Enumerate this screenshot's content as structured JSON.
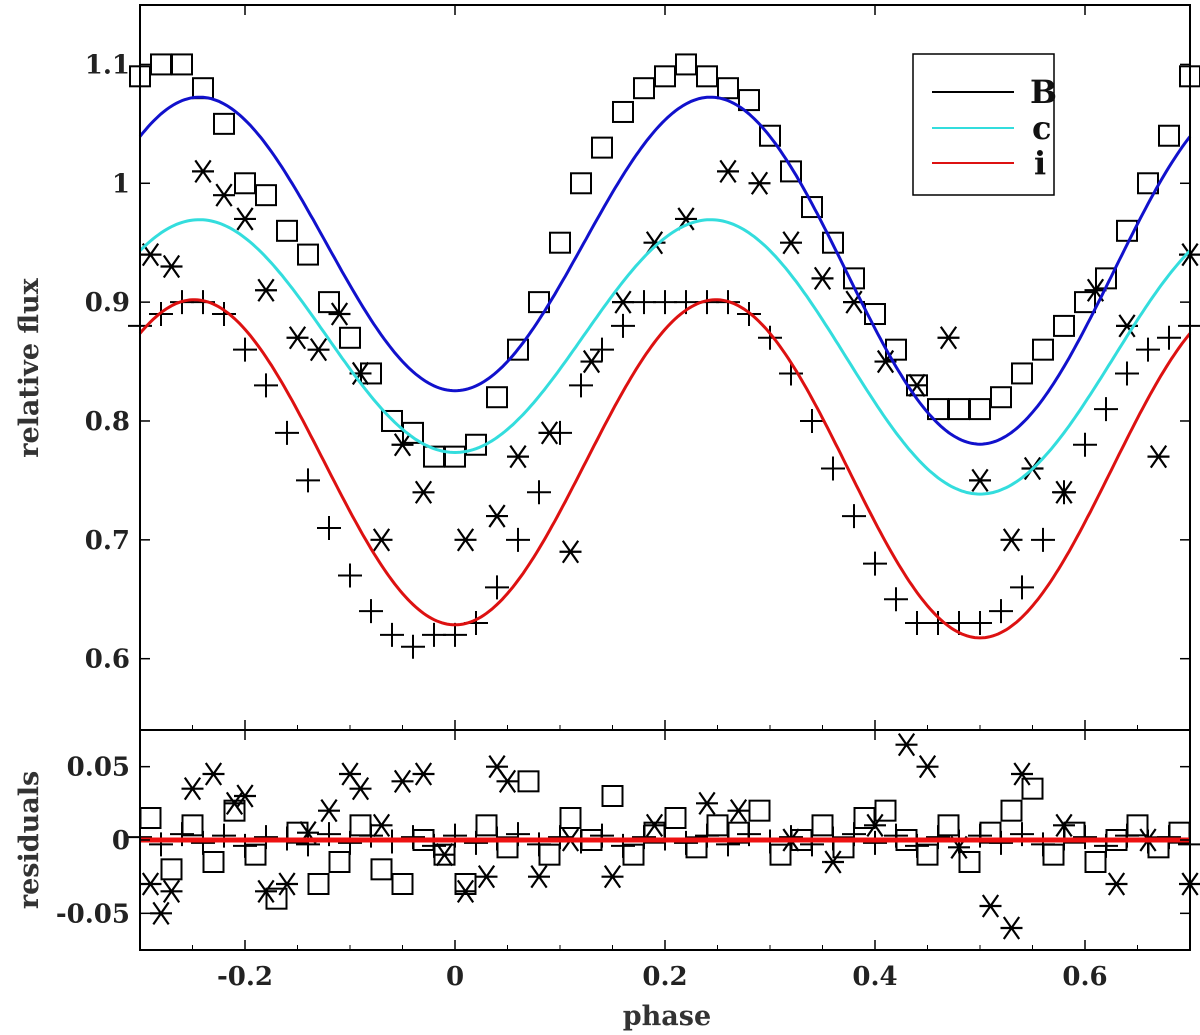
{
  "chart_data": [
    {
      "type": "scatter",
      "panel": "top",
      "title": "",
      "xlabel": "",
      "ylabel": "relative flux",
      "xlim": [
        -0.3,
        0.7
      ],
      "ylim": [
        0.54,
        1.15
      ],
      "grid": false,
      "legend_position": "top-right",
      "x_ticks": [
        -0.2,
        0,
        0.2,
        0.4,
        0.6
      ],
      "y_ticks": [
        0.6,
        0.7,
        0.8,
        0.9,
        1,
        1.1
      ],
      "y_tick_labels": [
        "0.6",
        "0.7",
        "0.8",
        "0.9",
        "1",
        "1.1"
      ],
      "legend": [
        {
          "label": "B",
          "color": "#000000"
        },
        {
          "label": "c",
          "color": "#33dddd"
        },
        {
          "label": "i",
          "color": "#dd1111"
        }
      ],
      "series": [
        {
          "name": "B",
          "marker": "square",
          "line_color": "#1111cc",
          "x": [
            -0.3,
            -0.28,
            -0.26,
            -0.24,
            -0.22,
            -0.2,
            -0.18,
            -0.16,
            -0.14,
            -0.12,
            -0.1,
            -0.08,
            -0.06,
            -0.04,
            -0.02,
            0,
            0.02,
            0.04,
            0.06,
            0.08,
            0.1,
            0.12,
            0.14,
            0.16,
            0.18,
            0.2,
            0.22,
            0.24,
            0.26,
            0.28,
            0.3,
            0.32,
            0.34,
            0.36,
            0.38,
            0.4,
            0.42,
            0.44,
            0.46,
            0.48,
            0.5,
            0.52,
            0.54,
            0.56,
            0.58,
            0.6,
            0.62,
            0.64,
            0.66,
            0.68,
            0.7
          ],
          "y": [
            1.09,
            1.1,
            1.1,
            1.08,
            1.05,
            1.0,
            0.99,
            0.96,
            0.94,
            0.9,
            0.87,
            0.84,
            0.8,
            0.79,
            0.77,
            0.77,
            0.78,
            0.82,
            0.86,
            0.9,
            0.95,
            1.0,
            1.03,
            1.06,
            1.08,
            1.09,
            1.1,
            1.09,
            1.08,
            1.07,
            1.04,
            1.01,
            0.98,
            0.95,
            0.92,
            0.89,
            0.86,
            0.83,
            0.81,
            0.81,
            0.81,
            0.82,
            0.84,
            0.86,
            0.88,
            0.9,
            0.92,
            0.96,
            1.0,
            1.04,
            1.09
          ],
          "model": {
            "mean": 0.9375,
            "semi_amp": 0.0225,
            "ellip_amp": 0.1345
          }
        },
        {
          "name": "c",
          "marker": "asterisk",
          "line_color": "#33dddd",
          "x": [
            -0.29,
            -0.27,
            -0.24,
            -0.22,
            -0.2,
            -0.18,
            -0.15,
            -0.13,
            -0.11,
            -0.09,
            -0.07,
            -0.05,
            -0.03,
            0.01,
            0.04,
            0.06,
            0.09,
            0.11,
            0.13,
            0.16,
            0.19,
            0.22,
            0.26,
            0.29,
            0.32,
            0.35,
            0.38,
            0.41,
            0.44,
            0.47,
            0.5,
            0.53,
            0.55,
            0.58,
            0.61,
            0.64,
            0.67,
            0.7
          ],
          "y": [
            0.94,
            0.93,
            1.01,
            0.99,
            0.97,
            0.91,
            0.87,
            0.86,
            0.89,
            0.84,
            0.7,
            0.78,
            0.74,
            0.7,
            0.72,
            0.77,
            0.79,
            0.69,
            0.85,
            0.9,
            0.95,
            0.97,
            1.01,
            1.0,
            0.95,
            0.92,
            0.9,
            0.85,
            0.83,
            0.87,
            0.75,
            0.7,
            0.76,
            0.74,
            0.91,
            0.88,
            0.77,
            0.94
          ],
          "model": {
            "mean": 0.8625,
            "semi_amp": 0.0175,
            "ellip_amp": 0.1065
          }
        },
        {
          "name": "i",
          "marker": "plus",
          "line_color": "#dd1111",
          "x": [
            -0.3,
            -0.28,
            -0.26,
            -0.24,
            -0.22,
            -0.2,
            -0.18,
            -0.16,
            -0.14,
            -0.12,
            -0.1,
            -0.08,
            -0.06,
            -0.04,
            -0.02,
            0,
            0.02,
            0.04,
            0.06,
            0.08,
            0.1,
            0.12,
            0.14,
            0.16,
            0.18,
            0.2,
            0.22,
            0.24,
            0.26,
            0.28,
            0.3,
            0.32,
            0.34,
            0.36,
            0.38,
            0.4,
            0.42,
            0.44,
            0.46,
            0.48,
            0.5,
            0.52,
            0.54,
            0.56,
            0.58,
            0.6,
            0.62,
            0.64,
            0.66,
            0.68,
            0.7
          ],
          "y": [
            0.88,
            0.89,
            0.9,
            0.9,
            0.89,
            0.86,
            0.83,
            0.79,
            0.75,
            0.71,
            0.67,
            0.64,
            0.62,
            0.61,
            0.62,
            0.62,
            0.63,
            0.66,
            0.7,
            0.74,
            0.79,
            0.83,
            0.86,
            0.88,
            0.9,
            0.9,
            0.9,
            0.9,
            0.9,
            0.89,
            0.87,
            0.84,
            0.8,
            0.76,
            0.72,
            0.68,
            0.65,
            0.63,
            0.63,
            0.63,
            0.63,
            0.64,
            0.66,
            0.7,
            0.74,
            0.78,
            0.81,
            0.84,
            0.86,
            0.87,
            0.88
          ],
          "model": {
            "mean": 0.7625,
            "semi_amp": 0.0055,
            "ellip_amp": 0.1395
          }
        }
      ]
    },
    {
      "type": "scatter",
      "panel": "bottom",
      "title": "",
      "xlabel": "phase",
      "ylabel": "residuals",
      "xlim": [
        -0.3,
        0.7
      ],
      "ylim": [
        -0.075,
        0.075
      ],
      "grid": false,
      "x_ticks": [
        -0.2,
        0,
        0.2,
        0.4,
        0.6
      ],
      "x_tick_labels": [
        "-0.2",
        "0",
        "0.2",
        "0.4",
        "0.6"
      ],
      "y_ticks": [
        -0.05,
        0,
        0.05
      ],
      "y_tick_labels": [
        "-0.05",
        "0",
        "0.05"
      ],
      "zero_line_color": "#ee1111",
      "series": [
        {
          "name": "B",
          "marker": "square",
          "x": [
            -0.29,
            -0.27,
            -0.25,
            -0.23,
            -0.21,
            -0.19,
            -0.17,
            -0.15,
            -0.13,
            -0.11,
            -0.09,
            -0.07,
            -0.05,
            -0.03,
            -0.01,
            0.01,
            0.03,
            0.05,
            0.07,
            0.09,
            0.11,
            0.13,
            0.15,
            0.17,
            0.19,
            0.21,
            0.23,
            0.25,
            0.27,
            0.29,
            0.31,
            0.33,
            0.35,
            0.37,
            0.39,
            0.41,
            0.43,
            0.45,
            0.47,
            0.49,
            0.51,
            0.53,
            0.55,
            0.57,
            0.59,
            0.61,
            0.63,
            0.65,
            0.67,
            0.69
          ],
          "y": [
            0.015,
            -0.02,
            0.01,
            -0.015,
            0.02,
            -0.01,
            -0.04,
            0.005,
            -0.03,
            -0.015,
            0.01,
            -0.02,
            -0.03,
            0.0,
            -0.01,
            -0.03,
            0.01,
            -0.005,
            0.04,
            -0.01,
            0.015,
            0.0,
            0.03,
            -0.01,
            0.005,
            0.015,
            -0.005,
            0.01,
            0.005,
            0.02,
            -0.01,
            0.0,
            0.01,
            -0.005,
            0.015,
            0.02,
            0.0,
            -0.01,
            0.01,
            -0.015,
            0.005,
            0.02,
            0.035,
            -0.01,
            0.005,
            -0.015,
            0.0,
            0.01,
            -0.005,
            0.005
          ]
        },
        {
          "name": "c",
          "marker": "asterisk",
          "x": [
            -0.29,
            -0.28,
            -0.27,
            -0.25,
            -0.23,
            -0.21,
            -0.2,
            -0.18,
            -0.16,
            -0.14,
            -0.12,
            -0.1,
            -0.09,
            -0.07,
            -0.05,
            -0.03,
            -0.01,
            0.01,
            0.03,
            0.04,
            0.05,
            0.08,
            0.11,
            0.15,
            0.19,
            0.24,
            0.27,
            0.32,
            0.36,
            0.4,
            0.43,
            0.45,
            0.48,
            0.51,
            0.53,
            0.54,
            0.58,
            0.63,
            0.66,
            0.7
          ],
          "y": [
            -0.03,
            -0.05,
            -0.035,
            0.035,
            0.045,
            0.025,
            0.03,
            -0.035,
            -0.03,
            0.005,
            0.02,
            0.045,
            0.035,
            0.01,
            0.04,
            0.045,
            -0.01,
            -0.035,
            -0.025,
            0.05,
            0.04,
            -0.025,
            0.0,
            -0.025,
            0.01,
            0.025,
            0.02,
            0.0,
            -0.015,
            0.01,
            0.065,
            0.05,
            -0.005,
            -0.045,
            -0.06,
            0.045,
            0.01,
            -0.03,
            0.0,
            -0.03
          ]
        },
        {
          "name": "i",
          "marker": "plus",
          "x": [
            -0.3,
            -0.28,
            -0.26,
            -0.24,
            -0.22,
            -0.2,
            -0.18,
            -0.16,
            -0.14,
            -0.12,
            -0.1,
            -0.08,
            -0.06,
            -0.04,
            -0.02,
            0,
            0.02,
            0.04,
            0.06,
            0.08,
            0.1,
            0.12,
            0.14,
            0.16,
            0.18,
            0.2,
            0.22,
            0.24,
            0.26,
            0.28,
            0.3,
            0.32,
            0.34,
            0.36,
            0.38,
            0.4,
            0.42,
            0.44,
            0.46,
            0.48,
            0.5,
            0.52,
            0.54,
            0.56,
            0.58,
            0.6,
            0.62,
            0.64,
            0.66,
            0.68,
            0.7
          ],
          "y": [
            0.002,
            -0.003,
            0.004,
            -0.002,
            0.003,
            -0.004,
            0.002,
            0.001,
            -0.003,
            0.004,
            -0.002,
            0.003,
            -0.001,
            0.002,
            -0.004,
            0.003,
            -0.002,
            0.001,
            0.004,
            -0.003,
            0.002,
            -0.001,
            0.003,
            -0.004,
            0.002,
            0.001,
            -0.002,
            0.003,
            -0.003,
            0.004,
            -0.001,
            0.002,
            -0.003,
            0.001,
            0.004,
            -0.002,
            0.003,
            -0.004,
            0.002,
            -0.001,
            0.003,
            -0.002,
            0.004,
            -0.003,
            0.001,
            0.002,
            -0.004,
            0.003,
            -0.001,
            0.002,
            -0.003
          ]
        }
      ]
    }
  ]
}
